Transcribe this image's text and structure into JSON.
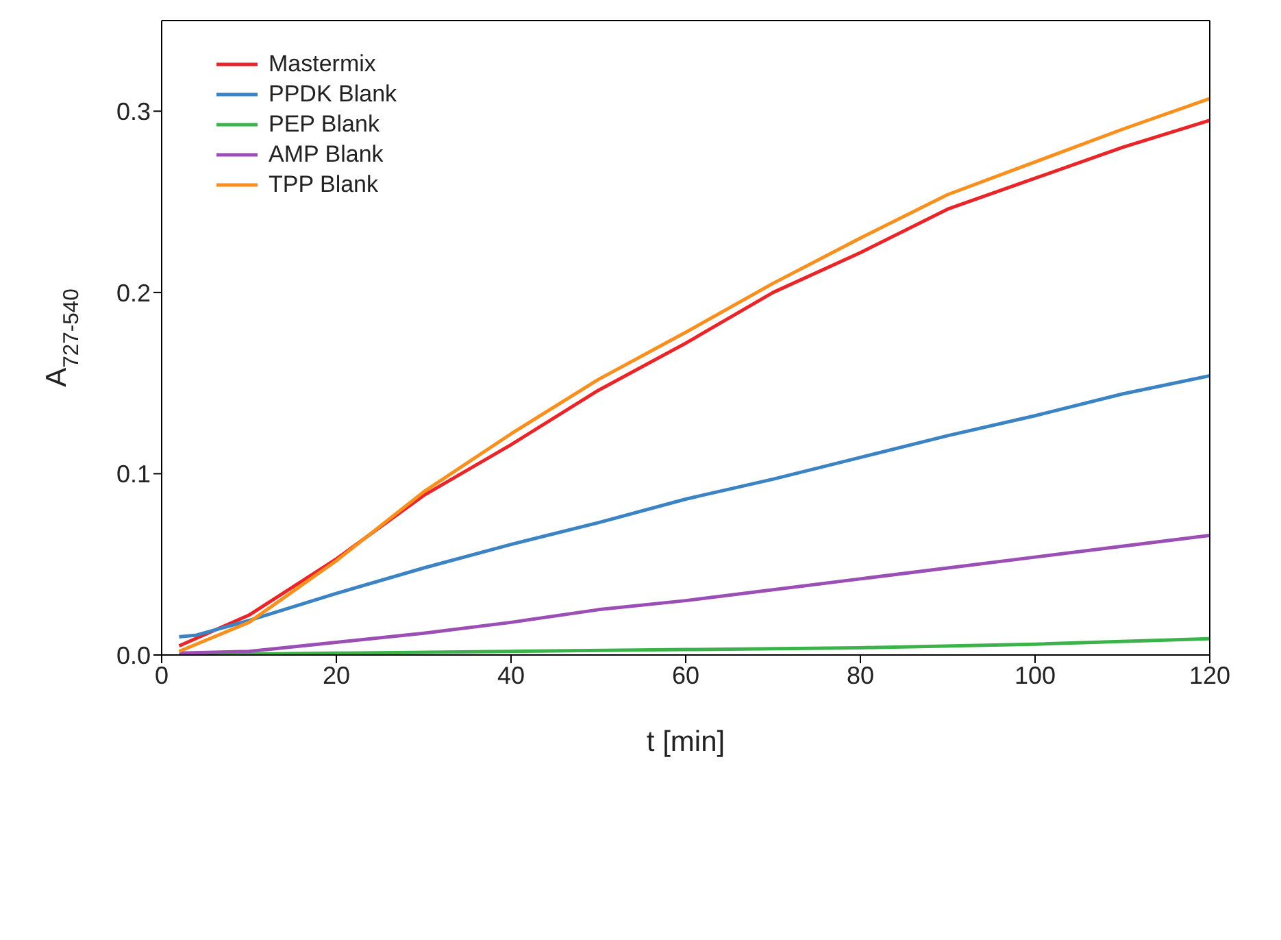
{
  "chart_data": {
    "type": "line",
    "xlabel": "t [min]",
    "ylabel": "A$_{727-540}$",
    "xlim": [
      0,
      120
    ],
    "xticks": [
      0,
      20,
      40,
      60,
      80,
      100,
      120
    ],
    "ylim": [
      0,
      0.35
    ],
    "yticks": [
      {
        "value": 0,
        "label": "0.0"
      },
      0.1,
      0.2,
      0.3
    ],
    "legend": "top left",
    "marker": "none",
    "line_style": "solid",
    "series": [
      {
        "name": "Mastermix",
        "color": "#e8262a",
        "x": [
          2,
          10,
          20,
          30,
          40,
          50,
          60,
          70,
          80,
          90,
          100,
          110,
          120
        ],
        "values": [
          0.005,
          0.022,
          0.053,
          0.088,
          0.116,
          0.146,
          0.172,
          0.2,
          0.222,
          0.246,
          0.263,
          0.28,
          0.295
        ]
      },
      {
        "name": "PPDK Blank",
        "color": "#3b83c3",
        "x": [
          2,
          4,
          10,
          20,
          30,
          40,
          50,
          60,
          70,
          80,
          90,
          100,
          110,
          120
        ],
        "values": [
          0.01,
          0.011,
          0.019,
          0.034,
          0.048,
          0.061,
          0.073,
          0.086,
          0.097,
          0.109,
          0.121,
          0.132,
          0.144,
          0.154
        ]
      },
      {
        "name": "PEP Blank",
        "color": "#3cb34a",
        "x": [
          2,
          20,
          40,
          60,
          80,
          100,
          120
        ],
        "values": [
          0,
          0.001,
          0.002,
          0.003,
          0.004,
          0.006,
          0.009
        ]
      },
      {
        "name": "AMP Blank",
        "color": "#9b4fb5",
        "x": [
          2,
          10,
          20,
          30,
          40,
          50,
          60,
          70,
          80,
          90,
          100,
          110,
          120
        ],
        "values": [
          0.001,
          0.002,
          0.007,
          0.012,
          0.018,
          0.025,
          0.03,
          0.036,
          0.042,
          0.048,
          0.054,
          0.06,
          0.066
        ]
      },
      {
        "name": "TPP Blank",
        "color": "#f7901e",
        "x": [
          2,
          10,
          20,
          30,
          40,
          50,
          60,
          70,
          80,
          90,
          100,
          110,
          120
        ],
        "values": [
          0.002,
          0.018,
          0.052,
          0.09,
          0.122,
          0.152,
          0.178,
          0.205,
          0.23,
          0.254,
          0.272,
          0.29,
          0.307
        ]
      }
    ]
  }
}
